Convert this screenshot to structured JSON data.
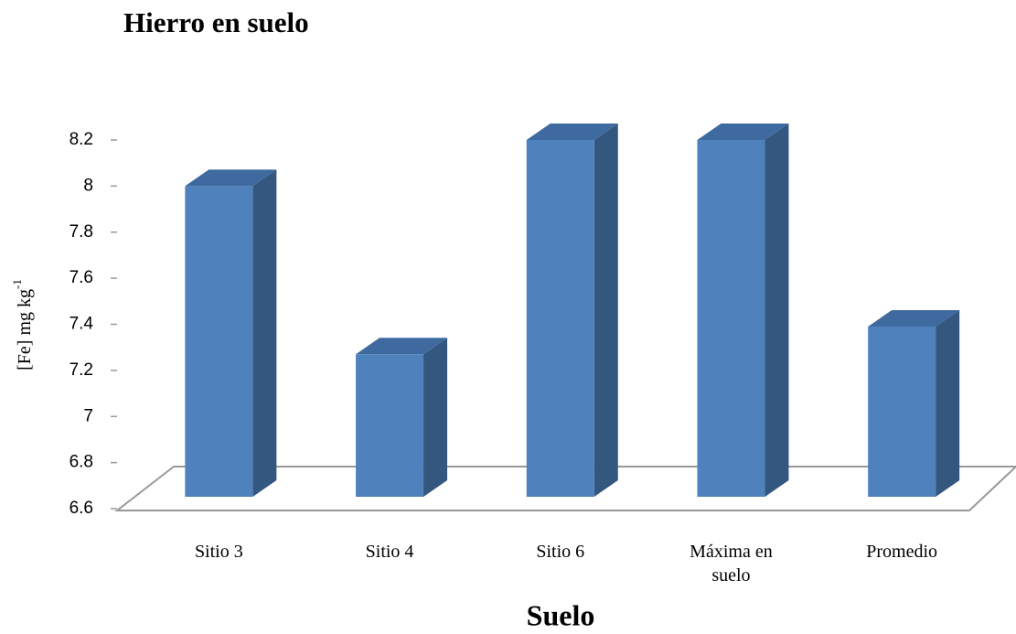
{
  "chart_data": {
    "type": "bar3d",
    "title": "Hierro en suelo",
    "x_label": "Suelo",
    "y_label": {
      "text": "[Fe] mg kg",
      "superscript": "-1"
    },
    "categories": [
      "Sitio 3",
      "Sitio 4",
      "Sitio 6",
      "Máxima en suelo",
      "Promedio"
    ],
    "values": [
      8.0,
      7.27,
      8.2,
      8.2,
      7.39
    ],
    "color": "#4f81bd",
    "ylim": [
      6.6,
      8.2
    ],
    "yticks": [
      6.6,
      6.8,
      7,
      7.2,
      7.4,
      7.6,
      7.8,
      8,
      8.2
    ]
  }
}
